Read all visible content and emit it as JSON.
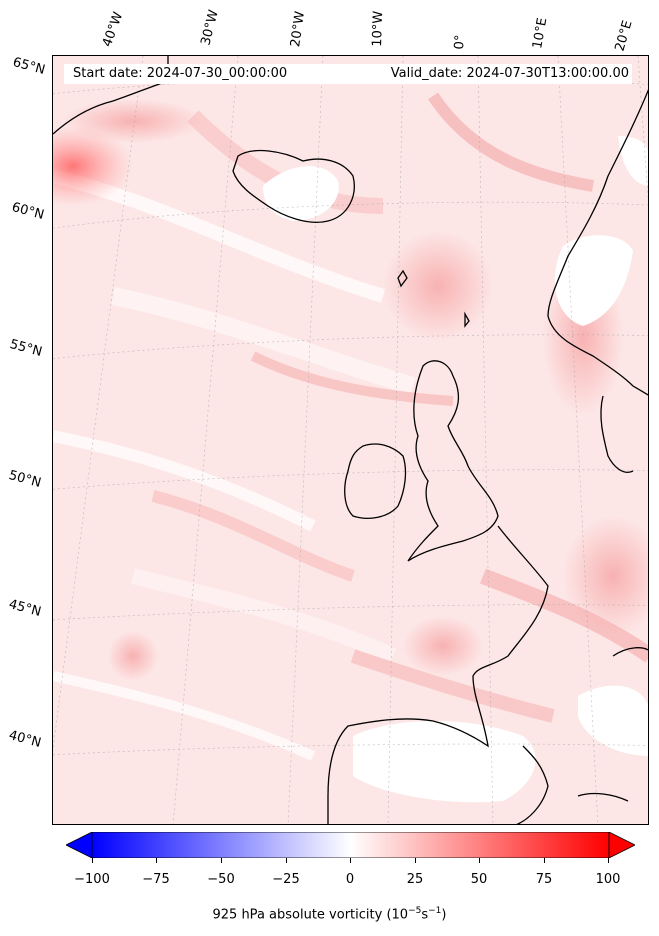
{
  "header": {
    "start_date": "Start date: 2024-07-30_00:00:00",
    "valid_date": "Valid_date: 2024-07-30T13:00:00.00"
  },
  "lon_labels": [
    "40°W",
    "30°W",
    "20°W",
    "10°W",
    "0°",
    "10°E",
    "20°E"
  ],
  "lat_labels": [
    "65°N",
    "60°N",
    "55°N",
    "50°N",
    "45°N",
    "40°N"
  ],
  "colorbar": {
    "ticks": [
      "−100",
      "−75",
      "−50",
      "−25",
      "0",
      "25",
      "50",
      "75",
      "100"
    ],
    "label": "925 hPa absolute vorticity (10",
    "label_exp1": "−5",
    "label_mid": "s",
    "label_exp2": "−1",
    "label_end": ")",
    "min": -100,
    "max": 100,
    "neg_color": "#0000ff",
    "pos_color": "#ff0000",
    "extend": "both"
  },
  "map": {
    "projection": "oblique / rotated lat-lon",
    "coastline_color": "#000000",
    "field_color_low": "#ffffff",
    "field_color_high": "#ff0000"
  }
}
